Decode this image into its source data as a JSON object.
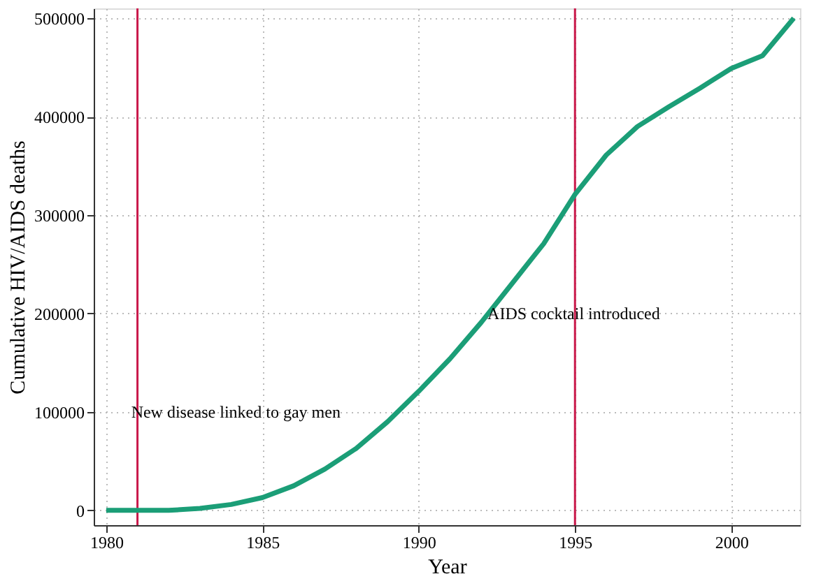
{
  "chart_data": {
    "type": "line",
    "xlabel": "Year",
    "ylabel": "Cumulative HIV/AIDS deaths",
    "x": [
      1980,
      1981,
      1982,
      1983,
      1984,
      1985,
      1986,
      1987,
      1988,
      1989,
      1990,
      1991,
      1992,
      1993,
      1994,
      1995,
      1996,
      1997,
      1998,
      1999,
      2000,
      2001,
      2002
    ],
    "series": [
      {
        "color": "#1b9e77",
        "values": [
          0,
          0,
          0,
          2000,
          6000,
          13000,
          25000,
          42000,
          63000,
          90000,
          121000,
          154000,
          191000,
          231000,
          271000,
          321000,
          361000,
          390000,
          410000,
          429000,
          449000,
          462000,
          500000
        ]
      }
    ],
    "xlim": [
      1979.6,
      2002.2
    ],
    "ylim": [
      -15000,
      510000
    ],
    "xticks": [
      1980,
      1985,
      1990,
      1995,
      2000
    ],
    "yticks": [
      0,
      100000,
      200000,
      300000,
      400000,
      500000
    ],
    "ref_lines": [
      {
        "axis": "x",
        "value": 1981,
        "color": "#c9184a"
      },
      {
        "axis": "x",
        "value": 1995,
        "color": "#c9184a"
      }
    ],
    "annotations": [
      {
        "text": "New disease linked to gay men",
        "x": 1980.8,
        "y": 100000
      },
      {
        "text": "AIDS cocktail introduced",
        "x": 1992.2,
        "y": 200000
      }
    ],
    "grid": true,
    "line_style": "solid",
    "marker": "none"
  }
}
